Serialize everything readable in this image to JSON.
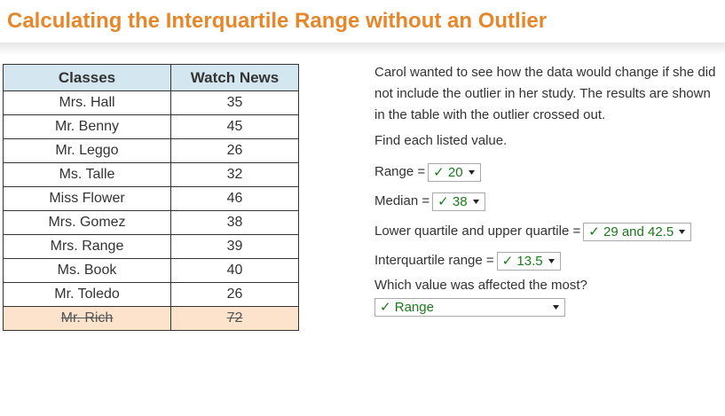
{
  "header": {
    "title": "Calculating the Interquartile Range without an Outlier"
  },
  "table": {
    "columns": [
      "Classes",
      "Watch News"
    ],
    "rows": [
      [
        "Mrs. Hall",
        35
      ],
      [
        "Mr. Benny",
        45
      ],
      [
        "Mr. Leggo",
        26
      ],
      [
        "Ms. Talle",
        32
      ],
      [
        "Miss Flower",
        46
      ],
      [
        "Mrs. Gomez",
        38
      ],
      [
        "Mrs. Range",
        39
      ],
      [
        "Ms. Book",
        40
      ],
      [
        "Mr. Toledo",
        26
      ]
    ],
    "excluded_row": [
      "Mr. Rich",
      72
    ]
  },
  "intro": "Carol wanted to see how the data would change if she did not include the outlier in her study. The results are shown in the table with the outlier crossed out.",
  "instruction": "Find each listed value.",
  "questions": [
    {
      "label": "Range =",
      "answer": "✓ 20"
    },
    {
      "label": "Median =",
      "answer": "✓ 38"
    },
    {
      "label": "Lower quartile and upper quartile =",
      "answer": "✓ 29 and 42.5"
    },
    {
      "label": "Interquartile range =",
      "answer": "✓ 13.5"
    },
    {
      "label": "Which value was affected the most?",
      "answer": "✓ Range"
    }
  ]
}
